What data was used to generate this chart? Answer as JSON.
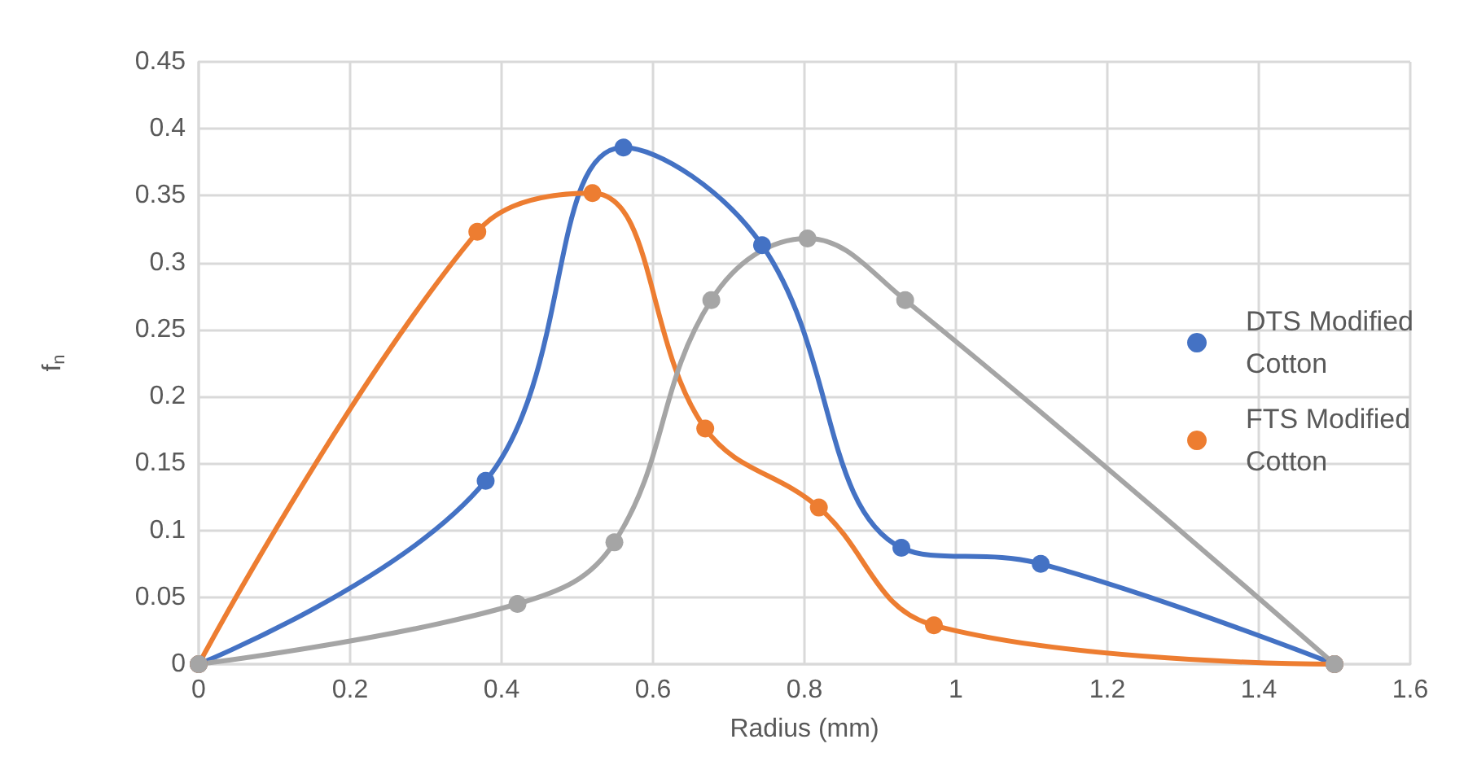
{
  "chart_data": {
    "type": "line",
    "xlabel": "Radius (mm)",
    "ylabel": "f$_{n}$",
    "xlim": [
      0,
      1.6
    ],
    "xticks": [
      0,
      0.2,
      0.4,
      0.6,
      0.8,
      1,
      1.2,
      1.4,
      1.6
    ],
    "ylim": [
      0,
      0.45
    ],
    "yticks": [
      0,
      0.05,
      0.1,
      0.15,
      0.2,
      0.25,
      0.3,
      0.35,
      0.4,
      0.45
    ],
    "grid": true,
    "legend": "right",
    "marker": "circle",
    "line_style": "solid",
    "series": [
      {
        "name": "DTS Modified Cotton",
        "color": "#4472c4",
        "x": [
          0,
          0.379,
          0.561,
          0.744,
          0.928,
          1.112,
          1.5
        ],
        "values": [
          0,
          0.137,
          0.386,
          0.313,
          0.087,
          0.075,
          0
        ]
      },
      {
        "name": "FTS Modified Cotton",
        "color": "#ed7d31",
        "x": [
          0,
          0.368,
          0.52,
          0.669,
          0.819,
          0.971,
          1.5
        ],
        "values": [
          0,
          0.323,
          0.352,
          0.176,
          0.117,
          0.029,
          0
        ]
      },
      {
        "color": "#a5a5a5",
        "x": [
          0,
          0.421,
          0.549,
          0.677,
          0.804,
          0.933,
          1.5
        ],
        "values": [
          0,
          0.045,
          0.091,
          0.272,
          0.318,
          0.272,
          0
        ]
      }
    ]
  }
}
